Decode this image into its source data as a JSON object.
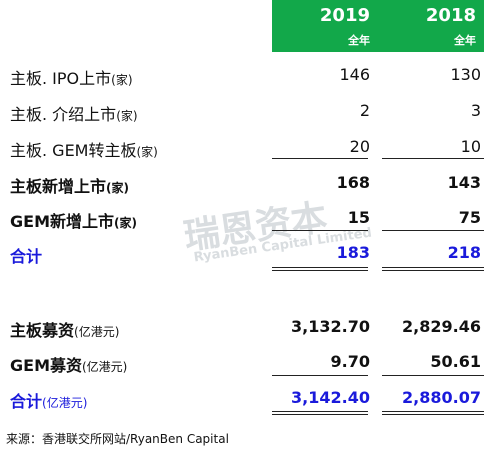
{
  "header": {
    "year_2019": "2019",
    "year_2018": "2018",
    "sub_2019": "全年",
    "sub_2018": "全年"
  },
  "rows": [
    {
      "main": "主板. IPO上市",
      "unit": "(家)",
      "v2019": "146",
      "v2018": "130"
    },
    {
      "main": "主板. 介绍上市",
      "unit": "(家)",
      "v2019": "2",
      "v2018": "3"
    },
    {
      "main": "主板. GEM转主板",
      "unit": "(家)",
      "v2019": "20",
      "v2018": "10"
    },
    {
      "main": "主板新增上市",
      "unit": "(家)",
      "v2019": "168",
      "v2018": "143"
    },
    {
      "main": "GEM新增上市",
      "unit": "(家)",
      "v2019": "15",
      "v2018": "75"
    },
    {
      "main": "合计",
      "unit": "",
      "v2019": "183",
      "v2018": "218"
    },
    {
      "main": "主板募资",
      "unit": "(亿港元)",
      "v2019": "3,132.70",
      "v2018": "2,829.46"
    },
    {
      "main": "GEM募资",
      "unit": "(亿港元)",
      "v2019": "9.70",
      "v2018": "50.61"
    },
    {
      "main": "合计",
      "unit": "(亿港元)",
      "v2019": "3,142.40",
      "v2018": "2,880.07"
    }
  ],
  "watermark": {
    "cn": "瑞恩资本",
    "en": "RyanBen Capital Limited"
  },
  "source": "来源：香港联交所网站/RyanBen Capital",
  "colors": {
    "header_green": "#12a84a",
    "total_blue": "#1a1adb"
  }
}
